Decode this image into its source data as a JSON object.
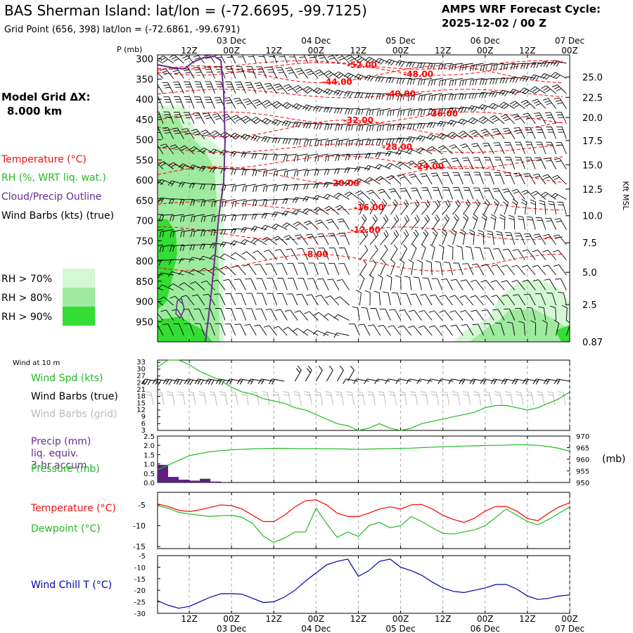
{
  "header": {
    "title": "BAS Sherman Island:  lat/lon = (-72.6695, -99.7125)",
    "subtitle": "Grid Point (656, 398) lat/lon = (-72.6861, -99.6791)",
    "cycle_label": "AMPS WRF Forecast Cycle:",
    "cycle_value": "2025-12-02 / 00  Z"
  },
  "legend": {
    "model_grid_label": "Model Grid ΔX:",
    "model_grid_value": "8.000 km",
    "temperature": "Temperature (°C)",
    "rh": "RH (%, WRT liq. wat.)",
    "cloud": "Cloud/Precip Outline",
    "wind": "Wind Barbs (kts) (true)",
    "rh70": "RH > 70%",
    "rh80": "RH > 80%",
    "rh90": "RH > 90%"
  },
  "colors": {
    "temperature": "#ff0000",
    "rh": "#22bb22",
    "cloud": "#6a2c91",
    "wind": "#000000",
    "grid_barbs": "#bbbbbb",
    "precip": "#5a1f80",
    "wind_chill": "#0000aa",
    "rh70": "#d4f7d4",
    "rh80": "#9eea9e",
    "rh90": "#33dd33"
  },
  "time_axis": {
    "tick_labels": [
      "12Z",
      "00Z",
      "12Z",
      "00Z",
      "12Z",
      "00Z",
      "12Z",
      "00Z",
      "12Z",
      "00Z"
    ],
    "tick_hours": [
      12,
      24,
      36,
      48,
      60,
      72,
      84,
      96,
      108,
      120
    ],
    "date_labels": [
      "03 Dec",
      "04 Dec",
      "05 Dec",
      "06 Dec",
      "07 Dec"
    ],
    "date_hours": [
      24,
      48,
      72,
      96,
      120
    ],
    "start_hour": 3,
    "end_hour": 120
  },
  "chart_data": [
    {
      "type": "line",
      "panel": "upper-air cross-section",
      "ylabel_left": "P (mb)",
      "ylabel_right": "Kft MSL",
      "pressure_ticks": [
        300,
        350,
        400,
        450,
        500,
        550,
        600,
        650,
        700,
        750,
        800,
        850,
        900,
        950
      ],
      "height_ticks": [
        {
          "p": 345,
          "label": "25.0"
        },
        {
          "p": 395,
          "label": "22.5"
        },
        {
          "p": 445,
          "label": "20.0"
        },
        {
          "p": 502,
          "label": "17.5"
        },
        {
          "p": 562,
          "label": "15.0"
        },
        {
          "p": 622,
          "label": "12.5"
        },
        {
          "p": 688,
          "label": "10.0"
        },
        {
          "p": 755,
          "label": "7.5"
        },
        {
          "p": 828,
          "label": "5.0"
        },
        {
          "p": 908,
          "label": "2.5"
        },
        {
          "p": 1000,
          "label": "0.87"
        }
      ],
      "ylim": [
        290,
        1000
      ],
      "temperature_contours": [
        {
          "label": "-52.00",
          "t": 61,
          "p": 315
        },
        {
          "label": "-48.00",
          "t": 77,
          "p": 338
        },
        {
          "label": "-44.00",
          "t": 54,
          "p": 357
        },
        {
          "label": "-40.00",
          "t": 72,
          "p": 387
        },
        {
          "label": "-36.00",
          "t": 84,
          "p": 435
        },
        {
          "label": "-32.00",
          "t": 60,
          "p": 452
        },
        {
          "label": "-28.00",
          "t": 71,
          "p": 518
        },
        {
          "label": "-24.00",
          "t": 80,
          "p": 566
        },
        {
          "label": "-20.00",
          "t": 56,
          "p": 608
        },
        {
          "label": "-16.00",
          "t": 63,
          "p": 668
        },
        {
          "label": "-12.00",
          "t": 62,
          "p": 723
        },
        {
          "label": "-8.00",
          "t": 48,
          "p": 783
        }
      ]
    },
    {
      "type": "line",
      "panel": "wind at 10 m",
      "panel_label": "Wind at 10 m",
      "series_labels": [
        "Wind Spd (kts)",
        "Wind Barbs (true)",
        "Wind Barbs (grid)"
      ],
      "yticks": [
        3,
        6,
        9,
        12,
        15,
        18,
        21,
        24,
        27,
        30,
        33
      ],
      "ylim": [
        3,
        34
      ],
      "x": [
        3,
        6,
        9,
        12,
        15,
        18,
        21,
        24,
        27,
        30,
        33,
        36,
        39,
        42,
        45,
        48,
        51,
        54,
        57,
        60,
        63,
        66,
        69,
        72,
        75,
        78,
        81,
        84,
        87,
        90,
        93,
        96,
        99,
        102,
        105,
        108,
        111,
        114,
        117,
        120
      ],
      "wind_speed": [
        31,
        34,
        34,
        32,
        29,
        27,
        25,
        22,
        20,
        19,
        17,
        16,
        15,
        13,
        12,
        10,
        8,
        6,
        5,
        3,
        4,
        6,
        4,
        3,
        4,
        6,
        7,
        8,
        9,
        10,
        11,
        13,
        14,
        14,
        13,
        12,
        13,
        15,
        17,
        20
      ]
    },
    {
      "type": "bar",
      "panel": "precip and pressure",
      "series_labels": [
        "Precip (mm)",
        "liq. equiv.",
        "3-hr accum",
        "Pressure (mb)"
      ],
      "ylabel_right": "(mb)",
      "precip_ticks": [
        0.0,
        0.5,
        1.0,
        1.5,
        2.0,
        2.5
      ],
      "pressure_ticks": [
        950,
        955,
        960,
        965,
        970
      ],
      "precip_ylim": [
        0,
        2.5
      ],
      "pressure_ylim": [
        950,
        970
      ],
      "precip_x": [
        3,
        6,
        9,
        12,
        15,
        18,
        21
      ],
      "precip": [
        0.95,
        0.3,
        0.15,
        0.1,
        0.2,
        0.05,
        0
      ],
      "pressure_x": [
        3,
        6,
        9,
        12,
        15,
        18,
        21,
        24,
        27,
        30,
        33,
        36,
        39,
        42,
        45,
        48,
        51,
        54,
        57,
        60,
        63,
        66,
        69,
        72,
        75,
        78,
        81,
        84,
        87,
        90,
        93,
        96,
        99,
        102,
        105,
        108,
        111,
        114,
        117,
        120
      ],
      "pressure": [
        955.5,
        957.5,
        959.5,
        961.5,
        962.5,
        963.3,
        963.7,
        964.1,
        964.3,
        964.5,
        964.6,
        964.7,
        964.7,
        964.6,
        964.6,
        964.6,
        964.5,
        964.5,
        964.4,
        964.3,
        964.4,
        964.5,
        964.6,
        964.7,
        964.8,
        965.0,
        965.2,
        965.4,
        965.5,
        965.7,
        965.8,
        965.9,
        966.0,
        966.1,
        966.3,
        966.2,
        966.0,
        965.5,
        964.7,
        963.5
      ]
    },
    {
      "type": "line",
      "panel": "temperature and dewpoint",
      "series_labels": [
        "Temperature (°C)",
        "Dewpoint (°C)"
      ],
      "yticks": [
        -5,
        -10,
        -15
      ],
      "ylim": [
        -15.5,
        -2
      ],
      "x": [
        3,
        6,
        9,
        12,
        15,
        18,
        21,
        24,
        27,
        30,
        33,
        36,
        39,
        42,
        45,
        48,
        51,
        54,
        57,
        60,
        63,
        66,
        69,
        72,
        75,
        78,
        81,
        84,
        87,
        90,
        93,
        96,
        99,
        102,
        105,
        108,
        111,
        114,
        117,
        120
      ],
      "temperature": [
        -4.8,
        -5.4,
        -6.3,
        -6.6,
        -6.2,
        -5.6,
        -5.0,
        -5.2,
        -6.0,
        -7.5,
        -9.0,
        -9.0,
        -7.5,
        -5.5,
        -4.0,
        -3.8,
        -5.0,
        -7.0,
        -7.8,
        -7.8,
        -7.0,
        -6.0,
        -5.5,
        -6.0,
        -5.0,
        -4.9,
        -6.0,
        -7.5,
        -8.5,
        -9.2,
        -8.2,
        -6.5,
        -5.4,
        -5.4,
        -6.5,
        -8.3,
        -8.8,
        -7.0,
        -5.5,
        -4.5
      ],
      "dewpoint": [
        -5.2,
        -5.8,
        -6.8,
        -7.2,
        -7.5,
        -7.8,
        -7.6,
        -7.5,
        -8.0,
        -9.5,
        -12.5,
        -14.0,
        -13.0,
        -11.5,
        -11.5,
        -5.8,
        -9.5,
        -12.8,
        -11.5,
        -12.6,
        -10.0,
        -9.2,
        -10.5,
        -10.0,
        -7.8,
        -9.0,
        -10.5,
        -11.8,
        -12.0,
        -11.5,
        -11.0,
        -10.0,
        -8.0,
        -6.0,
        -7.5,
        -9.0,
        -9.8,
        -8.5,
        -7.0,
        -5.5
      ]
    },
    {
      "type": "line",
      "panel": "wind chill",
      "series_labels": [
        "Wind Chill T (°C)"
      ],
      "yticks": [
        -5,
        -10,
        -15,
        -20,
        -25,
        -30
      ],
      "ylim": [
        -30,
        -5
      ],
      "x": [
        3,
        6,
        9,
        12,
        15,
        18,
        21,
        24,
        27,
        30,
        33,
        36,
        39,
        42,
        45,
        48,
        51,
        54,
        57,
        60,
        63,
        66,
        69,
        72,
        75,
        78,
        81,
        84,
        87,
        90,
        93,
        96,
        99,
        102,
        105,
        108,
        111,
        114,
        117,
        120
      ],
      "wind_chill": [
        -24.5,
        -26.5,
        -27.8,
        -27.0,
        -25.0,
        -23.0,
        -21.5,
        -21.5,
        -21.7,
        -23.5,
        -25.3,
        -25.0,
        -23.0,
        -20.0,
        -16.0,
        -12.5,
        -9.0,
        -7.5,
        -6.5,
        -14.0,
        -11.5,
        -7.5,
        -6.5,
        -10.0,
        -11.5,
        -13.5,
        -16.5,
        -19.0,
        -20.5,
        -21.0,
        -20.0,
        -19.0,
        -17.5,
        -17.5,
        -19.5,
        -22.5,
        -24.0,
        -23.5,
        -22.5,
        -22.0
      ]
    }
  ]
}
